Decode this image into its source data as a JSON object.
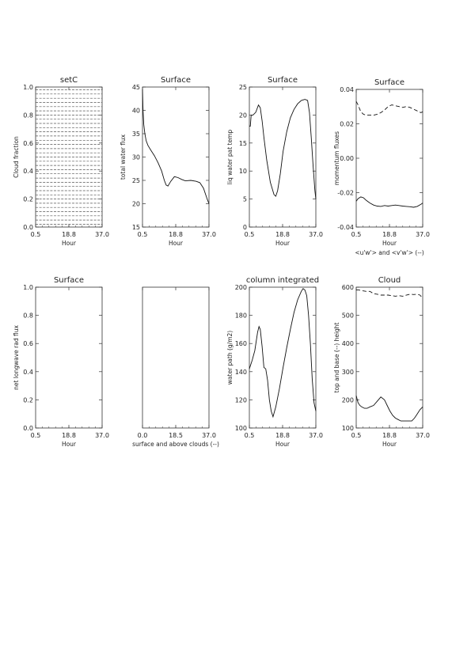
{
  "chart_data": [
    {
      "type": "line",
      "title": "setC",
      "xlabel": "Hour",
      "ylabel": "Cloud fraction",
      "xlim": [
        0.5,
        37.0
      ],
      "ylim": [
        0.0,
        1.0
      ],
      "xticks": [
        "0.5",
        "18.8",
        "37.0"
      ],
      "yticks": [
        "0.0",
        "0.2",
        "0.4",
        "0.6",
        "0.8",
        "1.0"
      ],
      "series": [
        {
          "style": "dashed",
          "x": [
            0.5,
            37.0
          ],
          "y": [
            0.02,
            0.02
          ]
        },
        {
          "style": "dashed",
          "x": [
            0.5,
            37.0
          ],
          "y": [
            0.05,
            0.05
          ]
        },
        {
          "style": "dashed",
          "x": [
            0.5,
            37.0
          ],
          "y": [
            0.08,
            0.08
          ]
        },
        {
          "style": "dashed",
          "x": [
            0.5,
            37.0
          ],
          "y": [
            0.11,
            0.11
          ]
        },
        {
          "style": "dashed",
          "x": [
            0.5,
            37.0
          ],
          "y": [
            0.14,
            0.14
          ]
        },
        {
          "style": "dashed",
          "x": [
            0.5,
            37.0
          ],
          "y": [
            0.17,
            0.17
          ]
        },
        {
          "style": "dashed",
          "x": [
            0.5,
            37.0
          ],
          "y": [
            0.2,
            0.2
          ]
        },
        {
          "style": "dashed",
          "x": [
            0.5,
            37.0
          ],
          "y": [
            0.23,
            0.23
          ]
        },
        {
          "style": "dashed",
          "x": [
            0.5,
            37.0
          ],
          "y": [
            0.26,
            0.26
          ]
        },
        {
          "style": "dashed",
          "x": [
            0.5,
            37.0
          ],
          "y": [
            0.29,
            0.29
          ]
        },
        {
          "style": "dashed",
          "x": [
            0.5,
            37.0
          ],
          "y": [
            0.32,
            0.32
          ]
        },
        {
          "style": "dashed",
          "x": [
            0.5,
            37.0
          ],
          "y": [
            0.35,
            0.35
          ]
        },
        {
          "style": "dashed",
          "x": [
            0.5,
            37.0
          ],
          "y": [
            0.38,
            0.38
          ]
        },
        {
          "style": "dashed",
          "x": [
            0.5,
            37.0
          ],
          "y": [
            0.41,
            0.41
          ]
        },
        {
          "style": "dashed",
          "x": [
            0.5,
            37.0
          ],
          "y": [
            0.44,
            0.44
          ]
        },
        {
          "style": "dashed",
          "x": [
            0.5,
            37.0
          ],
          "y": [
            0.47,
            0.47
          ]
        },
        {
          "style": "dashed",
          "x": [
            0.5,
            37.0
          ],
          "y": [
            0.5,
            0.5
          ]
        },
        {
          "style": "dashed",
          "x": [
            0.5,
            37.0
          ],
          "y": [
            0.53,
            0.53
          ]
        },
        {
          "style": "dashed",
          "x": [
            0.5,
            37.0
          ],
          "y": [
            0.56,
            0.56
          ]
        },
        {
          "style": "dashed",
          "x": [
            0.5,
            37.0
          ],
          "y": [
            0.59,
            0.59
          ]
        },
        {
          "style": "dashed",
          "x": [
            0.5,
            37.0
          ],
          "y": [
            0.62,
            0.62
          ]
        },
        {
          "style": "dashed",
          "x": [
            0.5,
            37.0
          ],
          "y": [
            0.65,
            0.65
          ]
        },
        {
          "style": "dashed",
          "x": [
            0.5,
            37.0
          ],
          "y": [
            0.68,
            0.68
          ]
        },
        {
          "style": "dashed",
          "x": [
            0.5,
            37.0
          ],
          "y": [
            0.71,
            0.71
          ]
        },
        {
          "style": "dashed",
          "x": [
            0.5,
            37.0
          ],
          "y": [
            0.74,
            0.74
          ]
        },
        {
          "style": "dashed",
          "x": [
            0.5,
            37.0
          ],
          "y": [
            0.77,
            0.77
          ]
        },
        {
          "style": "dashed",
          "x": [
            0.5,
            37.0
          ],
          "y": [
            0.8,
            0.8
          ]
        },
        {
          "style": "dashed",
          "x": [
            0.5,
            37.0
          ],
          "y": [
            0.83,
            0.83
          ]
        },
        {
          "style": "dashed",
          "x": [
            0.5,
            37.0
          ],
          "y": [
            0.86,
            0.86
          ]
        },
        {
          "style": "dashed",
          "x": [
            0.5,
            37.0
          ],
          "y": [
            0.89,
            0.89
          ]
        },
        {
          "style": "dashed",
          "x": [
            0.5,
            37.0
          ],
          "y": [
            0.92,
            0.92
          ]
        },
        {
          "style": "dashed",
          "x": [
            0.5,
            37.0
          ],
          "y": [
            0.95,
            0.95
          ]
        },
        {
          "style": "dashed",
          "x": [
            0.5,
            37.0
          ],
          "y": [
            0.98,
            0.98
          ]
        }
      ]
    },
    {
      "type": "line",
      "title": "Surface",
      "xlabel": "Hour",
      "ylabel": "total water flux",
      "xlim": [
        0.5,
        37.0
      ],
      "ylim": [
        15,
        45
      ],
      "xticks": [
        "0.5",
        "18.8",
        "37.0"
      ],
      "yticks": [
        "15",
        "20",
        "25",
        "30",
        "35",
        "40",
        "45"
      ],
      "series": [
        {
          "style": "solid",
          "x": [
            0.5,
            0.8,
            1.2,
            1.8,
            2.5,
            3.5,
            5,
            7,
            9,
            11,
            12.5,
            13.5,
            14.5,
            16,
            18,
            20,
            22,
            24,
            27,
            30,
            32,
            34,
            36,
            37
          ],
          "y": [
            44.5,
            40,
            37,
            35,
            33.5,
            32.5,
            31.5,
            30.3,
            28.8,
            27,
            25,
            24,
            23.8,
            24.8,
            25.8,
            25.6,
            25.2,
            24.9,
            25.0,
            24.8,
            24.5,
            23.3,
            21,
            20
          ]
        }
      ]
    },
    {
      "type": "line",
      "title": "Surface",
      "xlabel": "Hour",
      "ylabel": "liq water pat temp",
      "xlim": [
        0.5,
        37.0
      ],
      "ylim": [
        0,
        25
      ],
      "xticks": [
        "0.5",
        "18.8",
        "37.0"
      ],
      "yticks": [
        "0",
        "5",
        "10",
        "15",
        "20",
        "25"
      ],
      "series": [
        {
          "style": "solid",
          "x": [
            0.5,
            1,
            1.5,
            2.5,
            4,
            5.5,
            6.5,
            7.5,
            8.5,
            10,
            12,
            14,
            15,
            16,
            17.5,
            19,
            21,
            23,
            25,
            27,
            29,
            31,
            32.5,
            33.5,
            34.5,
            35.5,
            36.5,
            37
          ],
          "y": [
            18,
            18,
            20,
            20,
            20.5,
            21.8,
            21.3,
            19,
            16,
            12,
            8,
            5.8,
            5.5,
            6.5,
            9.5,
            13.5,
            17,
            19.5,
            21,
            22,
            22.6,
            22.8,
            22.6,
            20.5,
            16,
            11,
            6.5,
            5
          ]
        }
      ]
    },
    {
      "type": "line",
      "title": "Surface",
      "xlabel": "Hour",
      "ylabel": "momentum fluxes",
      "caption": "<u'w'> and <v'w'> (--)",
      "xlim": [
        0.5,
        37.0
      ],
      "ylim": [
        -0.04,
        0.04
      ],
      "xticks": [
        "0.5",
        "18.8",
        "37.0"
      ],
      "yticks": [
        "-0.04",
        "-0.02",
        "0.00",
        "0.02",
        "0.04"
      ],
      "series": [
        {
          "style": "solid",
          "x": [
            0.5,
            1.5,
            3,
            4.5,
            6,
            8,
            10,
            12,
            14,
            16,
            18,
            20,
            22,
            24,
            26,
            28,
            30,
            32,
            34,
            36,
            37
          ],
          "y": [
            -0.025,
            -0.0235,
            -0.0225,
            -0.023,
            -0.0245,
            -0.026,
            -0.0272,
            -0.0278,
            -0.028,
            -0.0275,
            -0.0278,
            -0.0275,
            -0.0272,
            -0.0275,
            -0.0278,
            -0.028,
            -0.0282,
            -0.0285,
            -0.028,
            -0.0268,
            -0.026
          ]
        },
        {
          "style": "dashed",
          "x": [
            0.5,
            1.5,
            3,
            4.5,
            6,
            8,
            10,
            12,
            14,
            16,
            18,
            20,
            22,
            24,
            26,
            28,
            30,
            32,
            34,
            36,
            37
          ],
          "y": [
            0.033,
            0.031,
            0.027,
            0.0255,
            0.025,
            0.025,
            0.025,
            0.0255,
            0.0265,
            0.028,
            0.03,
            0.031,
            0.0305,
            0.03,
            0.0295,
            0.03,
            0.0295,
            0.0285,
            0.0275,
            0.0265,
            0.027
          ]
        }
      ]
    },
    {
      "type": "line",
      "title": "Surface",
      "xlabel": "Hour",
      "ylabel": "net longwave rad flux",
      "xlim": [
        0.5,
        37.0
      ],
      "ylim": [
        0.0,
        1.0
      ],
      "xticks": [
        "0.5",
        "18.8",
        "37.0"
      ],
      "yticks": [
        "0.0",
        "0.2",
        "0.4",
        "0.6",
        "0.8",
        "1.0"
      ],
      "series": []
    },
    {
      "type": "line",
      "title": "",
      "xlabel": "surface and above clouds (--)",
      "ylabel": "",
      "xlim": [
        0.0,
        37.0
      ],
      "ylim": [
        0.0,
        1.0
      ],
      "xticks": [
        "0.0",
        "18.5",
        "37.0"
      ],
      "yticks": [],
      "series": []
    },
    {
      "type": "line",
      "title": "column integrated",
      "xlabel": "Hour",
      "ylabel": "water path (g/m2)",
      "xlim": [
        0.5,
        37.0
      ],
      "ylim": [
        100,
        200
      ],
      "xticks": [
        "0.5",
        "18.8",
        "37.0"
      ],
      "yticks": [
        "100",
        "120",
        "140",
        "160",
        "180",
        "200"
      ],
      "series": [
        {
          "style": "solid",
          "x": [
            0.5,
            2,
            3.5,
            5,
            5.8,
            6.5,
            7.5,
            8.5,
            9.5,
            10.5,
            11.5,
            12.5,
            13.5,
            15,
            17,
            19,
            21,
            23,
            25,
            27,
            29,
            30,
            31,
            32,
            33,
            34,
            35,
            36,
            37
          ],
          "y": [
            142,
            148,
            155,
            168,
            172,
            170,
            158,
            143,
            142,
            134,
            120,
            112,
            108,
            115,
            128,
            143,
            157,
            170,
            182,
            191,
            197,
            199,
            198,
            194,
            180,
            160,
            135,
            118,
            112
          ]
        }
      ]
    },
    {
      "type": "line",
      "title": "Cloud",
      "xlabel": "Hour",
      "ylabel": "top and base (--) height",
      "xlim": [
        0.5,
        37.0
      ],
      "ylim": [
        100,
        600
      ],
      "xticks": [
        "0.5",
        "18.8",
        "37.0"
      ],
      "yticks": [
        "100",
        "200",
        "300",
        "400",
        "500",
        "600"
      ],
      "series": [
        {
          "style": "solid",
          "x": [
            0.5,
            1.5,
            2.5,
            3.5,
            5,
            6.5,
            8,
            10,
            12,
            14,
            16,
            17.5,
            19,
            20.5,
            22,
            23.5,
            25,
            27,
            29,
            31,
            32.5,
            34,
            35.5,
            37
          ],
          "y": [
            215,
            190,
            180,
            175,
            170,
            170,
            175,
            180,
            195,
            210,
            200,
            180,
            160,
            145,
            135,
            130,
            125,
            125,
            125,
            125,
            135,
            150,
            165,
            175
          ]
        },
        {
          "style": "dashed",
          "x": [
            0.5,
            2,
            4,
            6,
            8,
            10,
            12,
            14,
            16,
            18,
            20,
            22,
            24,
            26,
            28,
            30,
            32,
            34,
            35.5,
            36.5,
            37
          ],
          "y": [
            590,
            590,
            587,
            585,
            585,
            577,
            575,
            572,
            572,
            572,
            570,
            568,
            570,
            568,
            572,
            575,
            574,
            575,
            572,
            565,
            560
          ]
        }
      ]
    }
  ]
}
